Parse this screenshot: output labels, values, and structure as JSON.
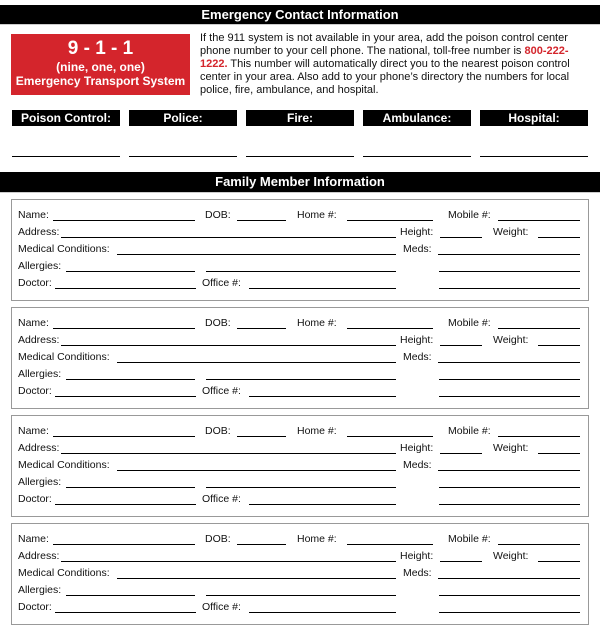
{
  "emergency": {
    "title": "Emergency Contact Information",
    "badge": {
      "number": "9 - 1 - 1",
      "spelled": "(nine, one, one)",
      "system": "Emergency Transport System",
      "color": "#d4252c"
    },
    "intro_before": "If the 911 system is not available in your area, add the poison control center phone number to your cell phone. The national, toll-free number is ",
    "phone": "800-222-1222.",
    "intro_after": " This number will automatically direct you to the nearest poison control center in your area. Also add to your phone’s directory the numbers for local police, fire, ambulance, and hospital.",
    "contacts": [
      "Poison Control:",
      "Police:",
      "Fire:",
      "Ambulance:",
      "Hospital:"
    ]
  },
  "family": {
    "title": "Family Member Information",
    "labels": {
      "name": "Name:",
      "dob": "DOB:",
      "home": "Home #:",
      "mobile": "Mobile #:",
      "address": "Address:",
      "height": "Height:",
      "weight": "Weight:",
      "medical": "Medical Conditions:",
      "meds": "Meds:",
      "allergies": "Allergies:",
      "doctor": "Doctor:",
      "office": "Office #:"
    },
    "member_count": 4
  }
}
